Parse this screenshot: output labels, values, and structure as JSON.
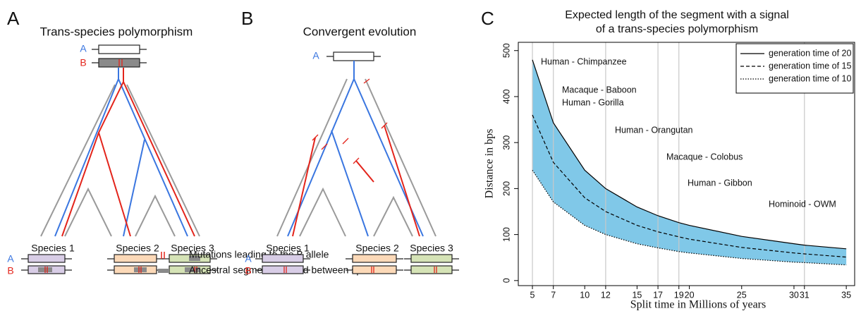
{
  "panels": [
    {
      "letter": "A",
      "title": "Trans-species polymorphism",
      "top_alleles": [
        "A",
        "B"
      ],
      "species": [
        "Species 1",
        "Species 2",
        "Species 3"
      ],
      "species_alleles": [
        "A",
        "B"
      ]
    },
    {
      "letter": "B",
      "title": "Convergent evolution",
      "top_alleles": [
        "A"
      ],
      "species": [
        "Species 1",
        "Species 2",
        "Species 3"
      ],
      "species_alleles": [
        "A",
        "B"
      ]
    }
  ],
  "legend": [
    "Mutations leading to the B allele",
    "Ancestral segments shared between species"
  ],
  "chart_data": {
    "type": "line",
    "panel_label": "C",
    "title": [
      "Expected length of the segment with a signal",
      "of a trans-species polymorphism"
    ],
    "xlabel": "Split time in Millions of years",
    "ylabel": "Distance in bps",
    "x": [
      5,
      7,
      10,
      12,
      15,
      17,
      19,
      20,
      25,
      30,
      31,
      35
    ],
    "series": [
      {
        "name": "generation time of 20",
        "color": "#000000",
        "dash": "solid",
        "values": [
          480,
          343,
          240,
          200,
          160,
          141,
          126,
          120,
          96,
          80,
          77,
          69
        ]
      },
      {
        "name": "generation time of 15",
        "color": "#000000",
        "dash": "dashed",
        "values": [
          360,
          257,
          180,
          150,
          120,
          106,
          95,
          90,
          72,
          60,
          58,
          51
        ]
      },
      {
        "name": "generation time of 10",
        "color": "#000000",
        "dash": "dotted",
        "values": [
          240,
          171,
          120,
          100,
          80,
          71,
          63,
          60,
          48,
          40,
          39,
          34
        ]
      }
    ],
    "band_color": "#80c8e8",
    "split_lines": [
      5,
      7,
      12,
      17,
      19,
      31
    ],
    "annotations": [
      "Human - Chimpanzee",
      "Macaque - Baboon",
      "Human - Gorilla",
      "Human - Orangutan",
      "Macaque - Colobus",
      "Human - Gibbon",
      "Hominoid  - OWM"
    ],
    "xlim": [
      3.65,
      35.8
    ],
    "ylim": [
      -11,
      518
    ],
    "xticks": [
      5,
      7,
      10,
      12,
      15,
      17,
      19,
      20,
      25,
      30,
      31,
      35
    ],
    "yticks": [
      0,
      100,
      200,
      300,
      400,
      500
    ],
    "legend_position": "top-right"
  }
}
